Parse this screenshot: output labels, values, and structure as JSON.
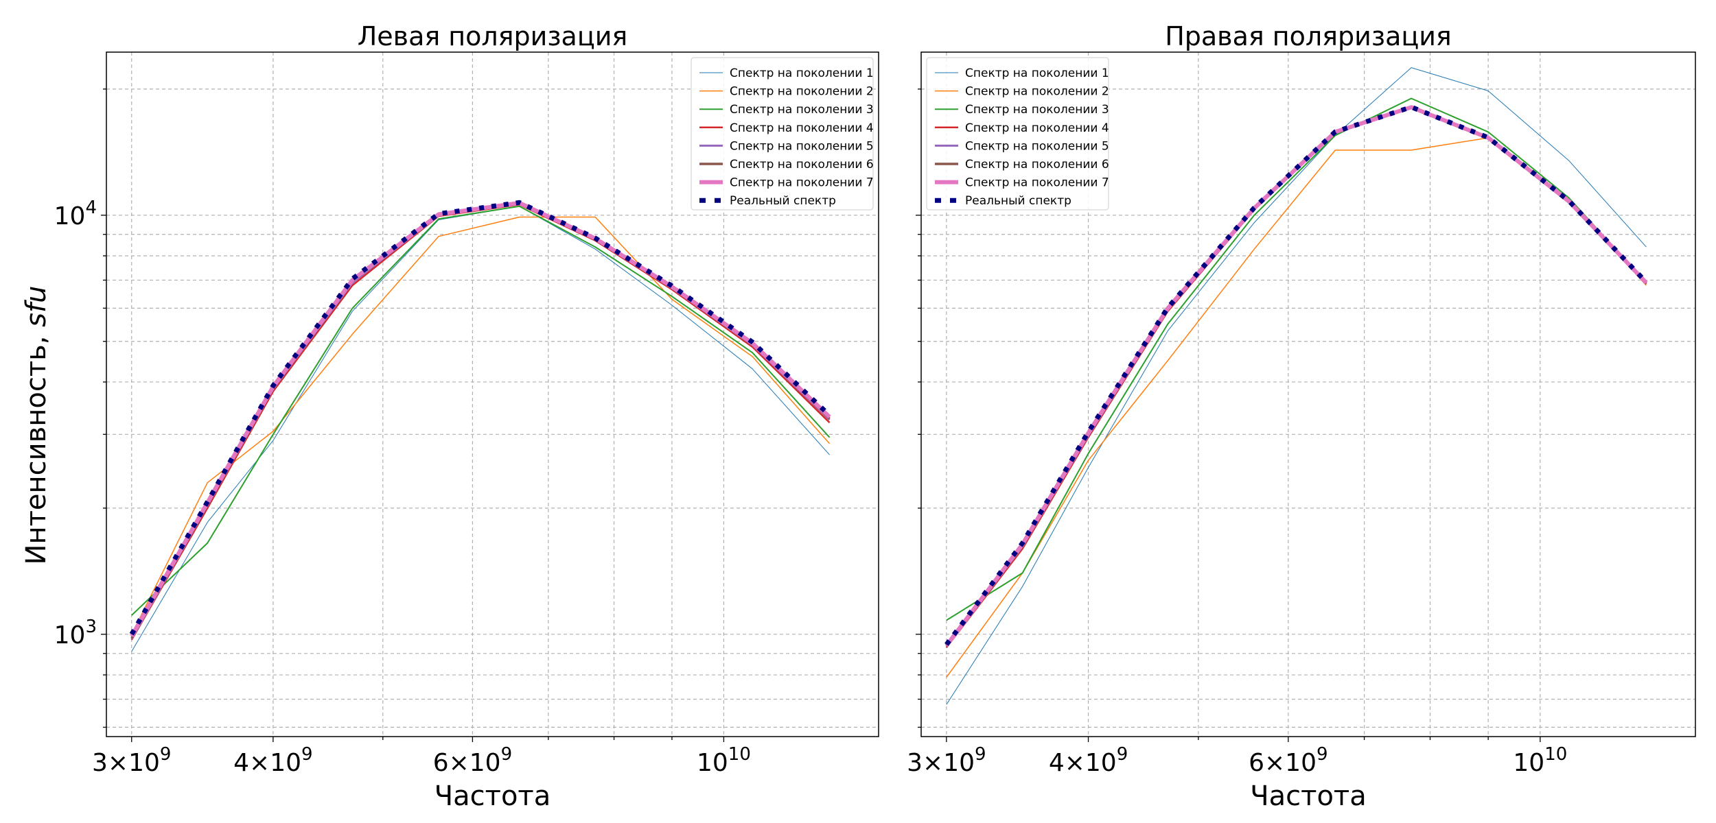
{
  "figure": {
    "ylabel_prefix": "Интенсивность, ",
    "ylabel_unit": "sfu"
  },
  "charts": [
    {
      "title": "Левая поляризация",
      "xlabel": "Частота",
      "ylabel": "Интенсивность, sfu"
    },
    {
      "title": "Правая поляризация",
      "xlabel": "Частота",
      "ylabel": ""
    }
  ],
  "chart_data": [
    {
      "type": "line",
      "title": "Левая поляризация",
      "xlabel": "Частота",
      "ylabel": "Интенсивность, sfu",
      "xscale": "log",
      "yscale": "log",
      "xlim": [
        2850000000.0,
        13700000000.0
      ],
      "ylim": [
        570,
        24500
      ],
      "xticks": [
        {
          "value": 3000000000.0,
          "label": "3×10^9"
        },
        {
          "value": 4000000000.0,
          "label": "4×10^9"
        },
        {
          "value": 6000000000.0,
          "label": "6×10^9"
        },
        {
          "value": 10000000000.0,
          "label": "10^10"
        }
      ],
      "yticks": [
        {
          "value": 1000,
          "label": "10^3"
        },
        {
          "value": 10000,
          "label": "10^4"
        }
      ],
      "grid": true,
      "legend_position": "top-right",
      "x": [
        3000000000.0,
        3500000000.0,
        4000000000.0,
        4700000000.0,
        5600000000.0,
        6600000000.0,
        7700000000.0,
        9000000000.0,
        10600000000.0,
        12400000000.0
      ],
      "series": [
        {
          "name": "Спектр на поколении 1",
          "color": "#1f77b4",
          "width": 1,
          "values": [
            910,
            1850,
            2900,
            5900,
            9750,
            10500,
            8300,
            6100,
            4300,
            2680
          ]
        },
        {
          "name": "Спектр на поколении 2",
          "color": "#ff7f0e",
          "width": 1.5,
          "values": [
            1000,
            2300,
            3050,
            5200,
            8900,
            9900,
            9900,
            6300,
            4600,
            2850
          ]
        },
        {
          "name": "Спектр на поколении 3",
          "color": "#2ca02c",
          "width": 2,
          "values": [
            1110,
            1650,
            3000,
            6000,
            9800,
            10500,
            8400,
            6400,
            4700,
            2950
          ]
        },
        {
          "name": "Спектр на поколении 4",
          "color": "#d62728",
          "width": 2.5,
          "values": [
            970,
            2000,
            3800,
            6800,
            9950,
            10600,
            8700,
            6650,
            4850,
            3200
          ]
        },
        {
          "name": "Спектр на поколении 5",
          "color": "#9467bd",
          "width": 3,
          "values": [
            975,
            2030,
            3850,
            6900,
            10000,
            10650,
            8750,
            6700,
            4900,
            3250
          ]
        },
        {
          "name": "Спектр на поколении 6",
          "color": "#8c564b",
          "width": 3.5,
          "values": [
            980,
            2050,
            3880,
            6950,
            10020,
            10680,
            8780,
            6720,
            4930,
            3270
          ]
        },
        {
          "name": "Спектр на поколении 7",
          "color": "#e377c2",
          "width": 6,
          "values": [
            990,
            2060,
            3900,
            7000,
            10050,
            10700,
            8800,
            6750,
            4950,
            3300
          ]
        },
        {
          "name": "Реальный спектр",
          "color": "#000080",
          "width": 7,
          "dash": "7,11",
          "values": [
            1000,
            2070,
            3920,
            7050,
            10080,
            10720,
            8820,
            6780,
            4980,
            3330
          ]
        }
      ]
    },
    {
      "type": "line",
      "title": "Правая поляризация",
      "xlabel": "Частота",
      "ylabel": "",
      "xscale": "log",
      "yscale": "log",
      "xlim": [
        2850000000.0,
        13700000000.0
      ],
      "ylim": [
        570,
        24500
      ],
      "xticks": [
        {
          "value": 3000000000.0,
          "label": "3×10^9"
        },
        {
          "value": 4000000000.0,
          "label": "4×10^9"
        },
        {
          "value": 6000000000.0,
          "label": "6×10^9"
        },
        {
          "value": 10000000000.0,
          "label": "10^10"
        }
      ],
      "yticks": [
        {
          "value": 1000,
          "label": ""
        },
        {
          "value": 10000,
          "label": ""
        }
      ],
      "grid": true,
      "legend_position": "top-left",
      "x": [
        3000000000.0,
        3500000000.0,
        4000000000.0,
        4700000000.0,
        5600000000.0,
        6600000000.0,
        7700000000.0,
        9000000000.0,
        10600000000.0,
        12400000000.0
      ],
      "series": [
        {
          "name": "Спектр на поколении 1",
          "color": "#1f77b4",
          "width": 1,
          "values": [
            680,
            1300,
            2500,
            5300,
            9600,
            15500,
            22500,
            19800,
            13500,
            8400
          ]
        },
        {
          "name": "Спектр на поколении 2",
          "color": "#ff7f0e",
          "width": 1.5,
          "values": [
            790,
            1400,
            2600,
            4500,
            8300,
            14300,
            14300,
            15300,
            10800,
            6800
          ]
        },
        {
          "name": "Спектр на поколении 3",
          "color": "#2ca02c",
          "width": 2,
          "values": [
            1080,
            1400,
            2700,
            5500,
            10000,
            15500,
            19000,
            15800,
            11000,
            6900
          ]
        },
        {
          "name": "Спектр на поколении 4",
          "color": "#d62728",
          "width": 2.5,
          "values": [
            930,
            1600,
            2950,
            5900,
            10300,
            15700,
            18000,
            15200,
            10700,
            6850
          ]
        },
        {
          "name": "Спектр на поколении 5",
          "color": "#9467bd",
          "width": 3,
          "values": [
            935,
            1620,
            2980,
            5950,
            10350,
            15750,
            18050,
            15250,
            10750,
            6870
          ]
        },
        {
          "name": "Спектр на поколении 6",
          "color": "#8c564b",
          "width": 3.5,
          "values": [
            938,
            1630,
            3000,
            5980,
            10380,
            15780,
            18080,
            15280,
            10770,
            6880
          ]
        },
        {
          "name": "Спектр на поколении 7",
          "color": "#e377c2",
          "width": 6,
          "values": [
            940,
            1640,
            3020,
            6000,
            10400,
            15800,
            18100,
            15300,
            10800,
            6900
          ]
        },
        {
          "name": "Реальный спектр",
          "color": "#000080",
          "width": 7,
          "dash": "7,11",
          "values": [
            945,
            1650,
            3040,
            6020,
            10420,
            15820,
            18120,
            15320,
            10820,
            6920
          ]
        }
      ]
    }
  ]
}
